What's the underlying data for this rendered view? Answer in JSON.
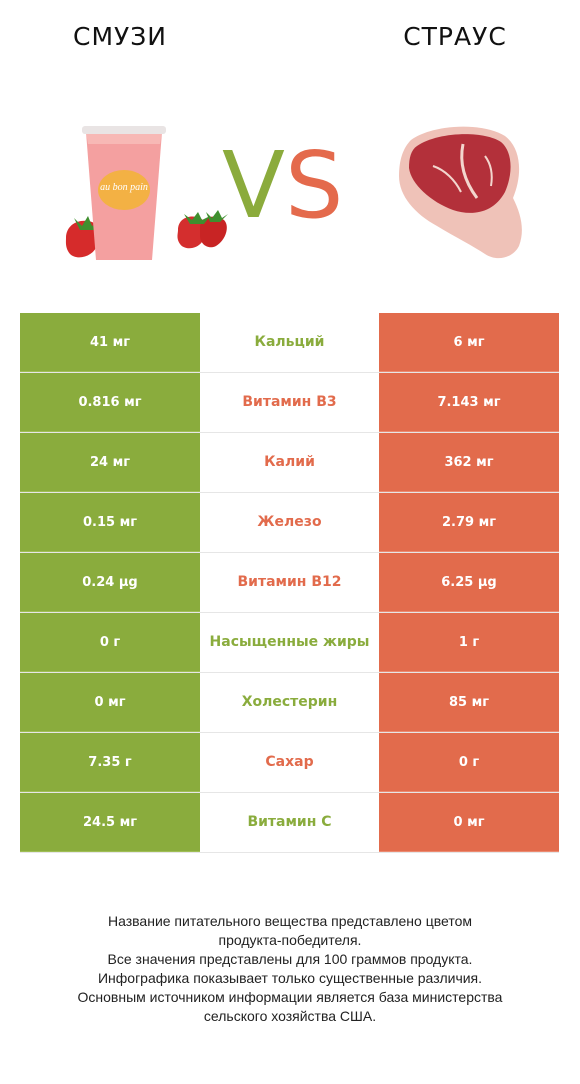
{
  "header": {
    "left_title": "СМУЗИ",
    "right_title": "СТРАУС"
  },
  "vs": {
    "v": "V",
    "s": "S"
  },
  "images": {
    "left": "smoothie-cup-icon",
    "right": "steak-meat-icon",
    "cup_brand": "au bon pain"
  },
  "colors": {
    "left_product": "#8aac3d",
    "right_product": "#e26b4c"
  },
  "rows": [
    {
      "left": "41 мг",
      "nutrient": "Кальций",
      "right": "6 мг",
      "winner": "green"
    },
    {
      "left": "0.816 мг",
      "nutrient": "Витамин B3",
      "right": "7.143 мг",
      "winner": "red"
    },
    {
      "left": "24 мг",
      "nutrient": "Калий",
      "right": "362 мг",
      "winner": "red"
    },
    {
      "left": "0.15 мг",
      "nutrient": "Железо",
      "right": "2.79 мг",
      "winner": "red"
    },
    {
      "left": "0.24 µg",
      "nutrient": "Витамин B12",
      "right": "6.25 µg",
      "winner": "red"
    },
    {
      "left": "0 г",
      "nutrient": "Насыщенные жиры",
      "right": "1 г",
      "winner": "green"
    },
    {
      "left": "0 мг",
      "nutrient": "Холестерин",
      "right": "85 мг",
      "winner": "green"
    },
    {
      "left": "7.35 г",
      "nutrient": "Сахар",
      "right": "0 г",
      "winner": "red"
    },
    {
      "left": "24.5 мг",
      "nutrient": "Витамин C",
      "right": "0 мг",
      "winner": "green"
    }
  ],
  "footer": {
    "lines": [
      "Название питательного вещества представлено цветом",
      "продукта-победителя.",
      "Все значения представлены для 100 граммов продукта.",
      "Инфографика показывает только существенные различия.",
      "Основным источником информации является база министерства",
      "сельского хозяйства США."
    ]
  }
}
